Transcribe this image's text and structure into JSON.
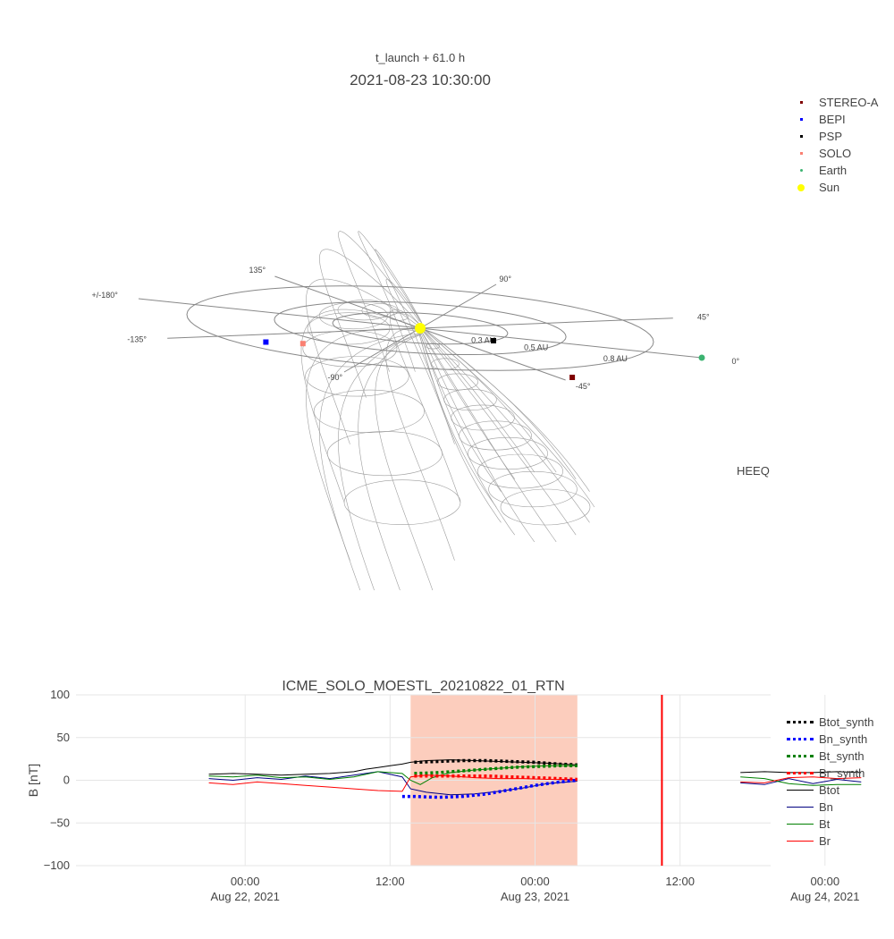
{
  "chart_data": [
    {
      "type": "scatter",
      "title": "2021-08-23 10:30:00",
      "subtitle": "t_launch + 61.0 h",
      "frame_label": "HEEQ",
      "angle_labels": [
        "90°",
        "45°",
        "0°",
        "-45°",
        "-90°",
        "-135°",
        "+/-180°",
        "135°"
      ],
      "distance_labels": [
        "0.3 AU",
        "0.5 AU",
        "0.8 AU"
      ],
      "legend": [
        {
          "name": "STEREO-A",
          "color": "#7f0000",
          "marker": "square"
        },
        {
          "name": "BEPI",
          "color": "#0000ff",
          "marker": "square"
        },
        {
          "name": "PSP",
          "color": "#000000",
          "marker": "square"
        },
        {
          "name": "SOLO",
          "color": "#fa8072",
          "marker": "square"
        },
        {
          "name": "Earth",
          "color": "#3cb371",
          "marker": "circle"
        },
        {
          "name": "Sun",
          "color": "#ffff00",
          "marker": "circle"
        }
      ],
      "bodies": [
        {
          "name": "Sun",
          "r": 0.0,
          "lon": 0
        },
        {
          "name": "PSP",
          "r": 0.3,
          "lon": -18
        },
        {
          "name": "STEREO-A",
          "r": 0.96,
          "lon": -42
        },
        {
          "name": "Earth",
          "r": 1.0,
          "lon": 0
        },
        {
          "name": "SOLO",
          "r": 0.6,
          "lon": -117
        },
        {
          "name": "BEPI",
          "r": 0.7,
          "lon": -124
        }
      ],
      "legend_position": "top-right"
    },
    {
      "type": "line",
      "title": "ICME_SOLO_MOESTL_20210822_01_RTN",
      "ylabel": "B [nT]",
      "ylim": [
        -100,
        100
      ],
      "yticks": [
        100,
        50,
        0,
        -50,
        -100
      ],
      "xlim_hours": [
        -14,
        43.5
      ],
      "xticks": [
        {
          "h": 0,
          "line1": "00:00",
          "line2": "Aug 22, 2021"
        },
        {
          "h": 12,
          "line1": "12:00",
          "line2": ""
        },
        {
          "h": 24,
          "line1": "00:00",
          "line2": "Aug 23, 2021"
        },
        {
          "h": 36,
          "line1": "12:00",
          "line2": ""
        },
        {
          "h": 48,
          "line1": "00:00",
          "line2": "Aug 24, 2021"
        }
      ],
      "shaded_interval_hours": [
        13.7,
        27.5
      ],
      "shade_color": "#fcc4b1",
      "vertical_line_hours": 34.5,
      "vertical_line_color": "#ff0000",
      "legend_position": "right",
      "series": [
        {
          "name": "Btot_synth",
          "color": "#000000",
          "dash": "dot",
          "x": [
            14,
            16,
            18,
            20,
            22,
            24,
            26,
            27.5
          ],
          "y": [
            21,
            22,
            23,
            23,
            22,
            21,
            19,
            18
          ]
        },
        {
          "name": "Bn_synth",
          "color": "#0000ff",
          "dash": "dot",
          "x": [
            13,
            14,
            16,
            18,
            20,
            22,
            24,
            26,
            27.5
          ],
          "y": [
            -19,
            -19,
            -20,
            -19,
            -16,
            -11,
            -6,
            -2,
            0
          ]
        },
        {
          "name": "Bt_synth",
          "color": "#008000",
          "dash": "dot",
          "x": [
            14,
            16,
            18,
            20,
            22,
            24,
            26,
            27.5
          ],
          "y": [
            8,
            9,
            11,
            13,
            15,
            16,
            17,
            17
          ]
        },
        {
          "name": "Br_synth",
          "color": "#ff0000",
          "dash": "dot",
          "x": [
            14,
            16,
            18,
            20,
            22,
            24,
            26,
            27.5
          ],
          "y": [
            5,
            5,
            5,
            5,
            4,
            3,
            2,
            1
          ]
        },
        {
          "name": "Btot",
          "color": "#000000",
          "dash": "solid",
          "x": [
            -3,
            -1,
            1,
            3,
            5,
            7,
            9,
            10,
            11,
            12,
            13,
            13.7,
            15,
            17,
            19,
            21,
            23,
            25,
            27.5,
            41,
            43,
            45,
            47,
            49,
            51
          ],
          "y": [
            7,
            8,
            7,
            6,
            7,
            8,
            10,
            13,
            15,
            17,
            19,
            21,
            23,
            24,
            23,
            22,
            21,
            20,
            18,
            9,
            10,
            9,
            9,
            10,
            9
          ]
        },
        {
          "name": "Bn",
          "color": "#000080",
          "dash": "solid",
          "x": [
            -3,
            -1,
            1,
            3,
            5,
            7,
            9,
            11,
            13,
            13.7,
            15,
            17,
            19,
            21,
            23,
            25,
            27.5,
            41,
            43,
            45,
            47,
            49,
            51
          ],
          "y": [
            2,
            0,
            3,
            1,
            5,
            2,
            6,
            10,
            4,
            -10,
            -14,
            -17,
            -16,
            -13,
            -9,
            -4,
            -1,
            -3,
            -5,
            2,
            -4,
            1,
            -2
          ]
        },
        {
          "name": "Bt",
          "color": "#008000",
          "dash": "solid",
          "x": [
            -3,
            -1,
            1,
            3,
            5,
            7,
            9,
            11,
            13,
            13.7,
            14.5,
            15.5,
            17,
            19,
            21,
            23,
            25,
            27.5,
            41,
            43,
            45,
            47,
            49,
            51
          ],
          "y": [
            5,
            4,
            6,
            3,
            4,
            1,
            4,
            10,
            8,
            0,
            -5,
            3,
            9,
            12,
            14,
            16,
            17,
            17,
            4,
            2,
            -4,
            -6,
            -5,
            -5
          ]
        },
        {
          "name": "Br",
          "color": "#ff0000",
          "dash": "solid",
          "x": [
            -3,
            -1,
            1,
            3,
            5,
            7,
            9,
            11,
            13,
            13.7,
            15,
            17,
            19,
            21,
            23,
            25,
            27.5,
            41,
            43,
            45,
            47,
            49,
            51
          ],
          "y": [
            -3,
            -5,
            -2,
            -4,
            -6,
            -8,
            -10,
            -12,
            -13,
            4,
            6,
            5,
            3,
            2,
            2,
            1,
            1,
            -2,
            -3,
            3,
            4,
            2,
            3
          ]
        }
      ]
    }
  ]
}
